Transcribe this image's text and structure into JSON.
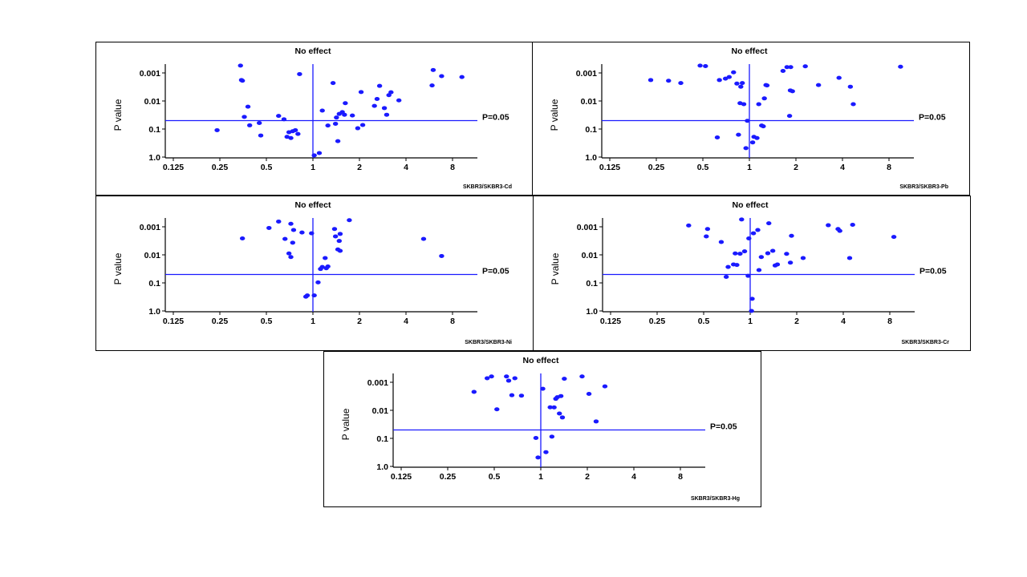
{
  "chart_data": [
    {
      "type": "scatter",
      "title": "No effect",
      "xlabel": "",
      "ylabel": "P value",
      "xscale": "log2",
      "yscale": "log10-reversed",
      "xlim": [
        0.125,
        10
      ],
      "ylim": [
        1.0,
        0.0005
      ],
      "xticks": [
        "0.125",
        "0.25",
        "0.5",
        "1",
        "2",
        "4",
        "8"
      ],
      "yticks": [
        "0.001",
        "0.01",
        "0.1",
        "1.0"
      ],
      "threshold_label": "P=0.05",
      "threshold": 0.05,
      "vertical_line": 1,
      "caption": "SKBR3/SKBR3-Cd",
      "series": [
        {
          "color": "#1a1aff",
          "x": [
            0.24,
            0.34,
            0.345,
            0.35,
            0.36,
            0.38,
            0.39,
            0.45,
            0.46,
            0.6,
            0.65,
            0.68,
            0.7,
            0.72,
            0.74,
            0.77,
            0.8,
            0.82,
            1.02,
            1.1,
            1.15,
            1.25,
            1.35,
            1.4,
            1.42,
            1.45,
            1.48,
            1.55,
            1.6,
            1.62,
            1.8,
            1.95,
            2.05,
            2.1,
            2.5,
            2.6,
            2.7,
            2.9,
            3.0,
            3.1,
            3.2,
            3.6,
            5.9,
            6.0,
            6.8,
            9.2
          ],
          "y": [
            0.11,
            0.00055,
            0.0018,
            0.0019,
            0.037,
            0.016,
            0.074,
            0.061,
            0.17,
            0.034,
            0.045,
            0.19,
            0.13,
            0.21,
            0.12,
            0.11,
            0.15,
            0.0011,
            0.87,
            0.72,
            0.022,
            0.075,
            0.0023,
            0.065,
            0.039,
            0.27,
            0.029,
            0.025,
            0.031,
            0.012,
            0.033,
            0.094,
            0.0048,
            0.072,
            0.015,
            0.0085,
            0.0029,
            0.018,
            0.031,
            0.0062,
            0.0049,
            0.0095,
            0.0028,
            0.00079,
            0.0013,
            0.0014
          ]
        }
      ]
    },
    {
      "type": "scatter",
      "title": "No effect",
      "xlabel": "",
      "ylabel": "P value",
      "xscale": "log2",
      "yscale": "log10-reversed",
      "xlim": [
        0.125,
        10
      ],
      "ylim": [
        1.0,
        0.0005
      ],
      "xticks": [
        "0.125",
        "0.25",
        "0.5",
        "1",
        "2",
        "4",
        "8"
      ],
      "yticks": [
        "0.001",
        "0.01",
        "0.1",
        "1.0"
      ],
      "threshold_label": "P=0.05",
      "threshold": 0.05,
      "vertical_line": 1,
      "caption": "SKBR3/SKBR3-Pb",
      "series": [
        {
          "color": "#1a1aff",
          "x": [
            0.23,
            0.3,
            0.36,
            0.48,
            0.52,
            0.62,
            0.64,
            0.7,
            0.74,
            0.79,
            0.83,
            0.85,
            0.87,
            0.88,
            0.9,
            0.92,
            0.95,
            0.97,
            1.05,
            1.07,
            1.12,
            1.15,
            1.2,
            1.23,
            1.25,
            1.28,
            1.3,
            1.65,
            1.75,
            1.82,
            1.84,
            1.85,
            1.9,
            2.3,
            2.8,
            3.8,
            4.5,
            4.7,
            9.5
          ],
          "y": [
            0.0018,
            0.0019,
            0.0023,
            0.00055,
            0.00057,
            0.2,
            0.0018,
            0.0016,
            0.0014,
            0.00095,
            0.0024,
            0.16,
            0.012,
            0.0031,
            0.0023,
            0.013,
            0.48,
            0.051,
            0.3,
            0.19,
            0.21,
            0.013,
            0.075,
            0.08,
            0.0081,
            0.0027,
            0.0028,
            0.00085,
            0.00062,
            0.034,
            0.0042,
            0.00062,
            0.0045,
            0.00058,
            0.0027,
            0.0015,
            0.0031,
            0.013,
            0.0006
          ]
        }
      ]
    },
    {
      "type": "scatter",
      "title": "No effect",
      "xlabel": "",
      "ylabel": "P value",
      "xscale": "log2",
      "yscale": "log10-reversed",
      "xlim": [
        0.125,
        10
      ],
      "ylim": [
        1.0,
        0.0005
      ],
      "xticks": [
        "0.125",
        "0.25",
        "0.5",
        "1",
        "2",
        "4",
        "8"
      ],
      "yticks": [
        "0.001",
        "0.01",
        "0.1",
        "1.0"
      ],
      "threshold_label": "P=0.05",
      "threshold": 0.05,
      "vertical_line": 1,
      "caption": "SKBR3/SKBR3-Ni",
      "series": [
        {
          "color": "#1a1aff",
          "x": [
            0.35,
            0.52,
            0.6,
            0.66,
            0.7,
            0.72,
            0.74,
            0.72,
            0.75,
            0.85,
            0.9,
            0.92,
            0.98,
            1.02,
            1.08,
            1.12,
            1.15,
            1.2,
            1.22,
            1.25,
            1.38,
            1.4,
            1.45,
            1.48,
            1.5,
            1.5,
            1.72,
            5.2,
            6.8
          ],
          "y": [
            0.0026,
            0.0011,
            0.00065,
            0.0027,
            0.0089,
            0.012,
            0.0037,
            0.00078,
            0.0013,
            0.0016,
            0.31,
            0.28,
            0.0017,
            0.28,
            0.096,
            0.032,
            0.027,
            0.013,
            0.03,
            0.026,
            0.0012,
            0.0022,
            0.0064,
            0.0032,
            0.0018,
            0.0072,
            0.00058,
            0.0027,
            0.011
          ]
        }
      ]
    },
    {
      "type": "scatter",
      "title": "No effect",
      "xlabel": "",
      "ylabel": "P value",
      "xscale": "log2",
      "yscale": "log10-reversed",
      "xlim": [
        0.125,
        10
      ],
      "ylim": [
        1.0,
        0.0005
      ],
      "xticks": [
        "0.125",
        "0.25",
        "0.5",
        "1",
        "2",
        "4",
        "8"
      ],
      "yticks": [
        "0.001",
        "0.01",
        "0.1",
        "1.0"
      ],
      "threshold_label": "P=0.05",
      "threshold": 0.05,
      "vertical_line": 1,
      "caption": "SKBR3/SKBR3-Cr",
      "series": [
        {
          "color": "#1a1aff",
          "x": [
            0.4,
            0.52,
            0.53,
            0.65,
            0.7,
            0.72,
            0.78,
            0.8,
            0.82,
            0.86,
            0.88,
            0.92,
            0.97,
            0.98,
            1.02,
            1.03,
            1.05,
            1.12,
            1.14,
            1.18,
            1.3,
            1.32,
            1.4,
            1.45,
            1.5,
            1.72,
            1.82,
            1.85,
            2.2,
            3.2,
            3.7,
            3.8,
            4.4,
            4.6,
            8.5
          ],
          "y": [
            0.0009,
            0.0022,
            0.0012,
            0.0035,
            0.061,
            0.027,
            0.022,
            0.0089,
            0.023,
            0.0091,
            0.00055,
            0.0075,
            0.056,
            0.0026,
            1.0,
            0.37,
            0.0017,
            0.0013,
            0.035,
            0.012,
            0.0088,
            0.00075,
            0.0072,
            0.024,
            0.022,
            0.0092,
            0.019,
            0.0021,
            0.013,
            0.00088,
            0.0012,
            0.0014,
            0.013,
            0.00085,
            0.0023
          ]
        }
      ]
    },
    {
      "type": "scatter",
      "title": "No effect",
      "xlabel": "",
      "ylabel": "P value",
      "xscale": "log2",
      "yscale": "log10-reversed",
      "xlim": [
        0.125,
        10
      ],
      "ylim": [
        1.0,
        0.0005
      ],
      "xticks": [
        "0.125",
        "0.25",
        "0.5",
        "1",
        "2",
        "4",
        "8"
      ],
      "yticks": [
        "0.001",
        "0.01",
        "0.1",
        "1.0"
      ],
      "threshold_label": "P=0.05",
      "threshold": 0.05,
      "vertical_line": 1,
      "caption": "SKBR3/SKBR3-Hg",
      "series": [
        {
          "color": "#1a1aff",
          "x": [
            0.37,
            0.45,
            0.48,
            0.52,
            0.6,
            0.62,
            0.65,
            0.68,
            0.75,
            0.93,
            0.96,
            1.03,
            1.08,
            1.15,
            1.18,
            1.22,
            1.25,
            1.28,
            1.32,
            1.35,
            1.38,
            1.42,
            1.85,
            2.05,
            2.28,
            2.6
          ],
          "y": [
            0.0022,
            0.00072,
            0.00062,
            0.0092,
            0.00062,
            0.00088,
            0.0029,
            0.00072,
            0.003,
            0.097,
            0.48,
            0.0017,
            0.31,
            0.0078,
            0.087,
            0.0079,
            0.0039,
            0.0034,
            0.013,
            0.0031,
            0.018,
            0.00075,
            0.00062,
            0.0026,
            0.025,
            0.0014
          ]
        }
      ]
    }
  ]
}
